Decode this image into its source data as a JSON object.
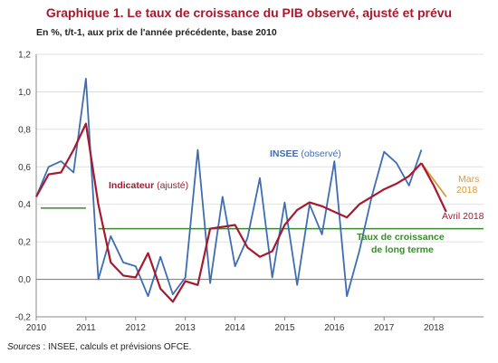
{
  "title": "Graphique 1. Le taux de croissance du PIB observé, ajusté et prévu",
  "subtitle": "En %, t/t-1, aux prix de l'année précédente, base 2010",
  "source": {
    "label": "Sources",
    "text": " : INSEE, calculs et prévisions OFCE."
  },
  "chart_data": {
    "type": "line",
    "ylim": [
      -0.2,
      1.2
    ],
    "yticks": [
      "1,2",
      "1,0",
      "0,8",
      "0,6",
      "0,4",
      "0,2",
      "0,0",
      "-0,2"
    ],
    "ytick_values": [
      1.2,
      1.0,
      0.8,
      0.6,
      0.4,
      0.2,
      0.0,
      -0.2
    ],
    "xlim": [
      2010.0,
      2019.0
    ],
    "xticks": [
      "2010",
      "2011",
      "2012",
      "2013",
      "2014",
      "2015",
      "2016",
      "2017",
      "2018"
    ],
    "xtick_values": [
      2010,
      2011,
      2012,
      2013,
      2014,
      2015,
      2016,
      2017,
      2018
    ],
    "grid": "horizontal",
    "x_quarters": [
      2010.0,
      2010.25,
      2010.5,
      2010.75,
      2011.0,
      2011.25,
      2011.5,
      2011.75,
      2012.0,
      2012.25,
      2012.5,
      2012.75,
      2013.0,
      2013.25,
      2013.5,
      2013.75,
      2014.0,
      2014.25,
      2014.5,
      2014.75,
      2015.0,
      2015.25,
      2015.5,
      2015.75,
      2016.0,
      2016.25,
      2016.5,
      2016.75,
      2017.0,
      2017.25,
      2017.5,
      2017.75
    ],
    "series": [
      {
        "name": "INSEE (observé)",
        "color": "#3e6db5",
        "values": [
          0.44,
          0.6,
          0.63,
          0.57,
          1.07,
          0.0,
          0.23,
          0.09,
          0.07,
          -0.09,
          0.12,
          -0.08,
          0.01,
          0.69,
          -0.02,
          0.44,
          0.07,
          0.22,
          0.54,
          0.01,
          0.41,
          -0.03,
          0.4,
          0.24,
          0.63,
          -0.09,
          0.15,
          0.44,
          0.68,
          0.62,
          0.5,
          0.69
        ]
      },
      {
        "name": "Indicateur (ajusté)",
        "color": "#a6192e",
        "values": [
          0.44,
          0.56,
          0.57,
          0.69,
          0.83,
          0.4,
          0.09,
          0.02,
          0.01,
          0.14,
          -0.05,
          -0.12,
          -0.01,
          -0.03,
          0.27,
          0.28,
          0.29,
          0.17,
          0.12,
          0.15,
          0.29,
          0.37,
          0.41,
          0.39,
          0.36,
          0.33,
          0.4,
          0.44,
          0.48,
          0.51,
          0.55,
          0.62
        ]
      },
      {
        "name": "Mars 2018",
        "color": "#d99a3a",
        "x": [
          2017.75,
          2018.0,
          2018.25
        ],
        "values": [
          0.62,
          0.53,
          0.44
        ]
      },
      {
        "name": "Avril 2018",
        "color": "#a6192e",
        "x": [
          2017.75,
          2018.0,
          2018.25
        ],
        "values": [
          0.62,
          0.5,
          0.36
        ]
      }
    ],
    "reference_lines": [
      {
        "label": "Taux de croissance de long terme",
        "value": 0.27,
        "x_start": 2011.25,
        "x_end": 2019.0,
        "color": "#3a8a2e"
      },
      {
        "value": 0.38,
        "x_start": 2010.0,
        "x_end": 2011.0,
        "color": "#3a8a2e"
      }
    ],
    "annotations": {
      "insee": {
        "prefix": "INSEE",
        "suffix": " (observé)"
      },
      "indicateur": {
        "prefix": "Indicateur",
        "suffix": " (ajusté)"
      },
      "mars": [
        "Mars",
        "2018"
      ],
      "avril": "Avril 2018",
      "long_terme": [
        "Taux de croissance",
        "de long terme"
      ]
    }
  }
}
